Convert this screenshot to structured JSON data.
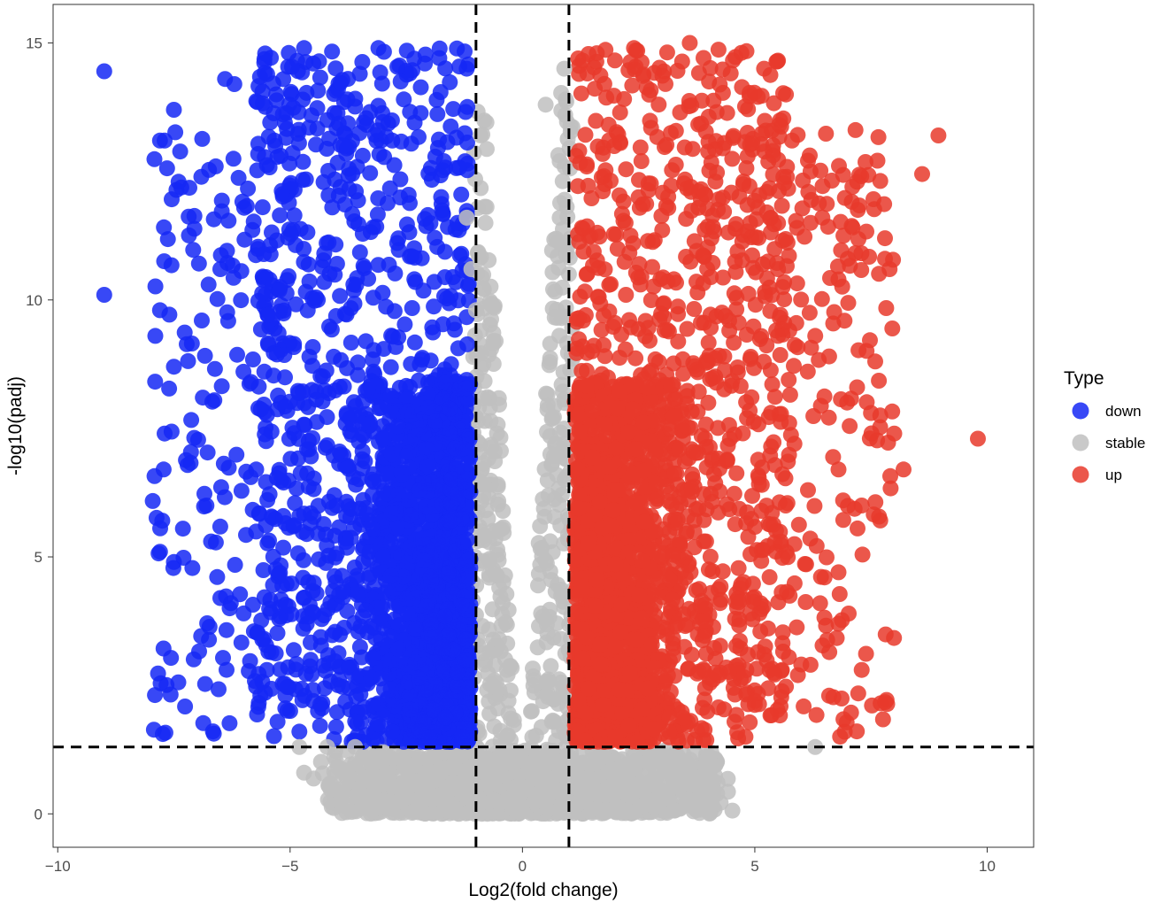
{
  "chart_data": {
    "type": "scatter",
    "title": "",
    "xlabel": "Log2(fold change)",
    "ylabel": "-log10(padj)",
    "xlim": [
      -10.1,
      11.0
    ],
    "ylim": [
      -0.65,
      15.75
    ],
    "x_ticks": [
      -10,
      -5,
      0,
      5,
      10
    ],
    "x_tick_labels": [
      "−10",
      "−5",
      "0",
      "5",
      "10"
    ],
    "y_ticks": [
      0,
      5,
      10,
      15
    ],
    "y_tick_labels": [
      "0",
      "5",
      "10",
      "15"
    ],
    "grid": false,
    "legend_position": "right",
    "legend_title": "Type",
    "thresholds": {
      "log2fc": [
        -1,
        1
      ],
      "neg_log10_padj": 1.3
    },
    "point_count_approx": {
      "down": 3400,
      "stable": 6500,
      "up": 3600
    },
    "series": [
      {
        "name": "down",
        "color": "#1528F5",
        "points_sample": [
          [
            -9.0,
            14.45
          ],
          [
            -9.0,
            10.1
          ],
          [
            -7.8,
            13.1
          ],
          [
            -7.7,
            13.1
          ],
          [
            -7.5,
            13.7
          ],
          [
            -7.4,
            12.3
          ],
          [
            -7.8,
            9.8
          ],
          [
            -7.9,
            9.3
          ],
          [
            -7.5,
            8.7
          ],
          [
            -7.7,
            7.4
          ],
          [
            -7.8,
            5.1
          ],
          [
            -7.5,
            4.9
          ],
          [
            -6.4,
            14.3
          ],
          [
            -6.2,
            14.2
          ],
          [
            -6.6,
            12.6
          ],
          [
            -6.5,
            10.6
          ],
          [
            -6.9,
            9.6
          ],
          [
            -6.8,
            6.0
          ],
          [
            -6.7,
            5.3
          ],
          [
            -6.5,
            4.2
          ],
          [
            -6.3,
            4.0
          ],
          [
            -6.0,
            3.9
          ],
          [
            -5.3,
            14.0
          ],
          [
            -4.7,
            14.9
          ],
          [
            -4.5,
            14.6
          ],
          [
            -4.2,
            13.5
          ],
          [
            -3.5,
            14.4
          ],
          [
            -3.1,
            14.9
          ],
          [
            -2.8,
            13.1
          ],
          [
            -2.1,
            14.6
          ],
          [
            -1.2,
            14.5
          ],
          [
            -5.5,
            2.8
          ],
          [
            -4.8,
            1.6
          ],
          [
            -4.4,
            2.0
          ],
          [
            -3.6,
            1.8
          ],
          [
            -2.8,
            1.6
          ],
          [
            -2.0,
            1.5
          ],
          [
            -1.3,
            1.5
          ],
          [
            -5.2,
            8.0
          ],
          [
            -4.0,
            6.0
          ],
          [
            -3.0,
            5.0
          ],
          [
            -1.4,
            11.5
          ]
        ]
      },
      {
        "name": "stable",
        "color": "#C0C0C0",
        "points_sample": [
          [
            -1.2,
            11.6
          ],
          [
            -0.9,
            13.2
          ],
          [
            -1.1,
            10.6
          ],
          [
            -1.0,
            9.8
          ],
          [
            -0.9,
            9.4
          ],
          [
            -0.7,
            7.9
          ],
          [
            -0.5,
            4.4
          ],
          [
            -0.3,
            2.2
          ],
          [
            0.2,
            2.0
          ],
          [
            0.4,
            3.9
          ],
          [
            0.6,
            7.0
          ],
          [
            0.8,
            11.6
          ],
          [
            0.9,
            14.5
          ],
          [
            0.5,
            13.8
          ],
          [
            0.8,
            12.7
          ],
          [
            1.0,
            10.5
          ],
          [
            -4.8,
            1.3
          ],
          [
            -4.7,
            0.8
          ],
          [
            -4.2,
            1.3
          ],
          [
            -3.6,
            1.3
          ],
          [
            -3.2,
            0.4
          ],
          [
            -3.0,
            1.2
          ],
          [
            -1.5,
            0.6
          ],
          [
            -0.5,
            0.2
          ],
          [
            0.0,
            0.05
          ],
          [
            0.5,
            0.2
          ],
          [
            1.5,
            0.4
          ],
          [
            3.2,
            0.9
          ],
          [
            3.6,
            0.9
          ],
          [
            4.2,
            0.6
          ],
          [
            6.3,
            1.3
          ],
          [
            -2.0,
            1.1
          ],
          [
            2.5,
            1.0
          ],
          [
            3.8,
            0.5
          ]
        ]
      },
      {
        "name": "up",
        "color": "#E8392B",
        "points_sample": [
          [
            1.2,
            14.7
          ],
          [
            1.6,
            14.8
          ],
          [
            2.4,
            14.9
          ],
          [
            3.6,
            15.0
          ],
          [
            5.2,
            14.5
          ],
          [
            8.95,
            13.2
          ],
          [
            8.6,
            12.45
          ],
          [
            7.2,
            12.3
          ],
          [
            7.1,
            12.2
          ],
          [
            6.2,
            12.5
          ],
          [
            5.8,
            13.1
          ],
          [
            6.2,
            11.5
          ],
          [
            7.8,
            11.2
          ],
          [
            7.8,
            10.8
          ],
          [
            7.0,
            10.8
          ],
          [
            7.9,
            10.6
          ],
          [
            6.8,
            10.4
          ],
          [
            5.5,
            10.6
          ],
          [
            9.8,
            7.3
          ],
          [
            8.2,
            6.7
          ],
          [
            8.0,
            7.4
          ],
          [
            7.5,
            7.8
          ],
          [
            7.3,
            6.0
          ],
          [
            6.8,
            6.7
          ],
          [
            6.6,
            8.9
          ],
          [
            7.2,
            8.3
          ],
          [
            6.9,
            6.1
          ],
          [
            6.5,
            4.6
          ],
          [
            6.8,
            4.7
          ],
          [
            6.8,
            3.7
          ],
          [
            7.3,
            2.8
          ],
          [
            6.6,
            2.3
          ],
          [
            6.2,
            2.9
          ],
          [
            5.0,
            2.2
          ],
          [
            4.8,
            1.5
          ],
          [
            2.0,
            1.5
          ],
          [
            3.0,
            5.0
          ],
          [
            1.5,
            9.0
          ],
          [
            2.5,
            12.0
          ],
          [
            4.0,
            8.0
          ],
          [
            5.5,
            9.3
          ],
          [
            6.3,
            9.3
          ]
        ]
      }
    ]
  }
}
